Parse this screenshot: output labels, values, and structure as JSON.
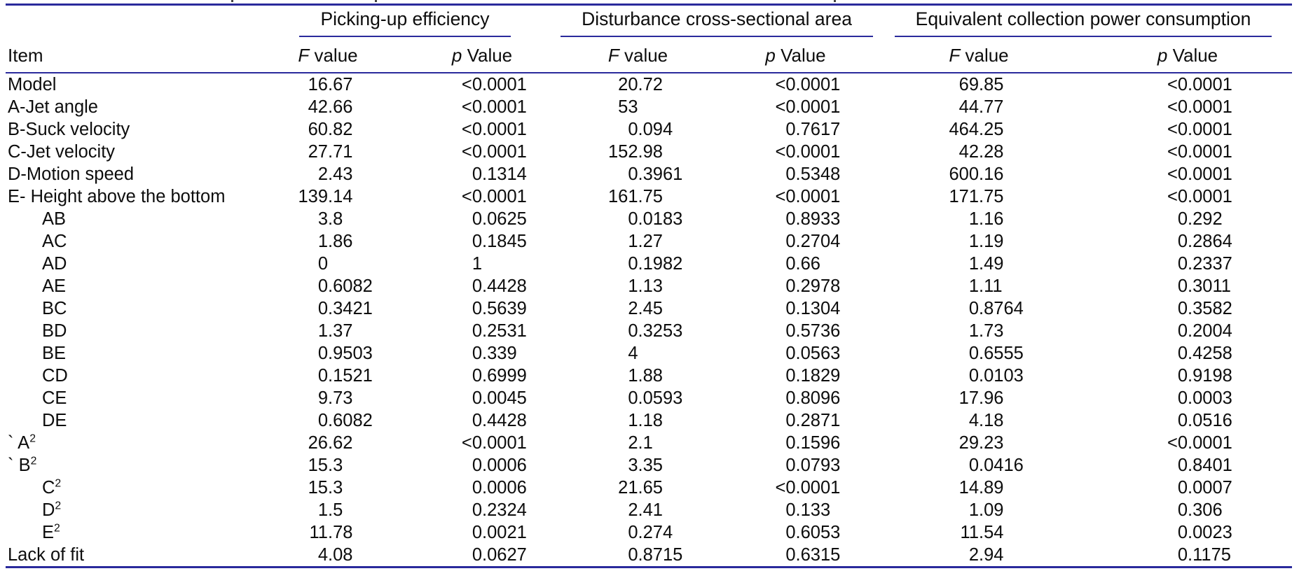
{
  "colors": {
    "rule_line": "#2a2a9c",
    "text": "#0d0d0d",
    "background": "#ffffff"
  },
  "table": {
    "item_header": "Item",
    "groups": [
      {
        "label": "Picking-up efficiency"
      },
      {
        "label": "Disturbance cross-sectional area"
      },
      {
        "label": "Equivalent collection power consumption"
      }
    ],
    "sub_f": {
      "italic": "F",
      "rest": " value"
    },
    "sub_p": {
      "italic": "p",
      "rest": " Value"
    },
    "rows": [
      {
        "label": "Model",
        "sup": "",
        "indent": false,
        "values": [
          "16.67",
          "<0.0001",
          "20.72",
          "<0.0001",
          "69.85",
          "<0.0001"
        ]
      },
      {
        "label": "A-Jet angle",
        "sup": "",
        "indent": false,
        "values": [
          "42.66",
          "<0.0001",
          "53",
          "<0.0001",
          "44.77",
          "<0.0001"
        ]
      },
      {
        "label": "B-Suck velocity",
        "sup": "",
        "indent": false,
        "values": [
          "60.82",
          "<0.0001",
          "0.094",
          "0.7617",
          "464.25",
          "<0.0001"
        ]
      },
      {
        "label": "C-Jet velocity",
        "sup": "",
        "indent": false,
        "values": [
          "27.71",
          "<0.0001",
          "152.98",
          "<0.0001",
          "42.28",
          "<0.0001"
        ]
      },
      {
        "label": "D-Motion speed",
        "sup": "",
        "indent": false,
        "values": [
          "2.43",
          "0.1314",
          "0.3961",
          "0.5348",
          "600.16",
          "<0.0001"
        ]
      },
      {
        "label": "E- Height above the bottom",
        "sup": "",
        "indent": false,
        "values": [
          "139.14",
          "<0.0001",
          "161.75",
          "<0.0001",
          "171.75",
          "<0.0001"
        ]
      },
      {
        "label": "AB",
        "sup": "",
        "indent": true,
        "values": [
          "3.8",
          "0.0625",
          "0.0183",
          "0.8933",
          "1.16",
          "0.292"
        ]
      },
      {
        "label": "AC",
        "sup": "",
        "indent": true,
        "values": [
          "1.86",
          "0.1845",
          "1.27",
          "0.2704",
          "1.19",
          "0.2864"
        ]
      },
      {
        "label": "AD",
        "sup": "",
        "indent": true,
        "values": [
          "0",
          "1",
          "0.1982",
          "0.66",
          "1.49",
          "0.2337"
        ]
      },
      {
        "label": "AE",
        "sup": "",
        "indent": true,
        "values": [
          "0.6082",
          "0.4428",
          "1.13",
          "0.2978",
          "1.11",
          "0.3011"
        ]
      },
      {
        "label": "BC",
        "sup": "",
        "indent": true,
        "values": [
          "0.3421",
          "0.5639",
          "2.45",
          "0.1304",
          "0.8764",
          "0.3582"
        ]
      },
      {
        "label": "BD",
        "sup": "",
        "indent": true,
        "values": [
          "1.37",
          "0.2531",
          "0.3253",
          "0.5736",
          "1.73",
          "0.2004"
        ]
      },
      {
        "label": "BE",
        "sup": "",
        "indent": true,
        "values": [
          "0.9503",
          "0.339",
          "4",
          "0.0563",
          "0.6555",
          "0.4258"
        ]
      },
      {
        "label": "CD",
        "sup": "",
        "indent": true,
        "values": [
          "0.1521",
          "0.6999",
          "1.88",
          "0.1829",
          "0.0103",
          "0.9198"
        ]
      },
      {
        "label": "CE",
        "sup": "",
        "indent": true,
        "values": [
          "9.73",
          "0.0045",
          "0.0593",
          "0.8096",
          "17.96",
          "0.0003"
        ]
      },
      {
        "label": "DE",
        "sup": "",
        "indent": true,
        "values": [
          "0.6082",
          "0.4428",
          "1.18",
          "0.2871",
          "4.18",
          "0.0516"
        ]
      },
      {
        "label": "` A",
        "sup": "2",
        "indent": false,
        "values": [
          "26.62",
          "<0.0001",
          "2.1",
          "0.1596",
          "29.23",
          "<0.0001"
        ]
      },
      {
        "label": "` B",
        "sup": "2",
        "indent": false,
        "values": [
          "15.3",
          "0.0006",
          "3.35",
          "0.0793",
          "0.0416",
          "0.8401"
        ]
      },
      {
        "label": "C",
        "sup": "2",
        "indent": true,
        "values": [
          "15.3",
          "0.0006",
          "21.65",
          "<0.0001",
          "14.89",
          "0.0007"
        ]
      },
      {
        "label": "D",
        "sup": "2",
        "indent": true,
        "values": [
          "1.5",
          "0.2324",
          "2.41",
          "0.133",
          "1.09",
          "0.306"
        ]
      },
      {
        "label": "E",
        "sup": "2",
        "indent": true,
        "values": [
          "11.78",
          "0.0021",
          "0.274",
          "0.6053",
          "11.54",
          "0.0023"
        ]
      },
      {
        "label": "Lack of fit",
        "sup": "",
        "indent": false,
        "values": [
          "4.08",
          "0.0627",
          "0.8715",
          "0.6315",
          "2.94",
          "0.1175"
        ]
      }
    ]
  }
}
